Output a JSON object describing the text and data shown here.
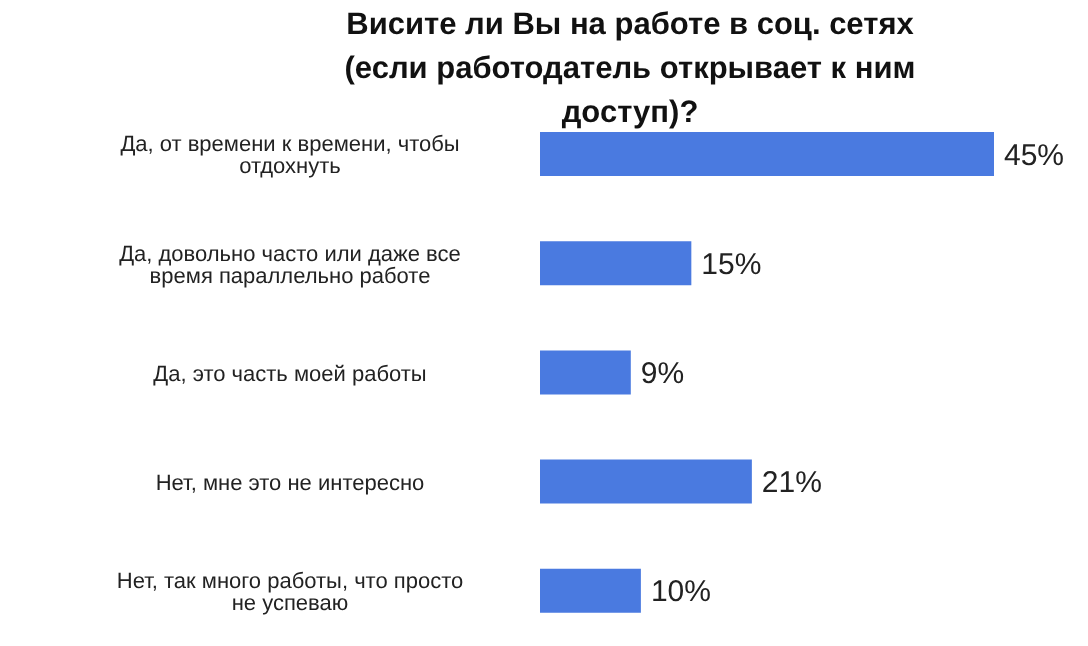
{
  "chart_data": {
    "type": "bar",
    "orientation": "horizontal",
    "title": "Висите ли Вы на работе в соц. сетях (если работодатель открывает к ним доступ)?",
    "categories": [
      "Да, от времени к времени, чтобы отдохнуть",
      "Да, довольно часто или даже все время параллельно работе",
      "Да, это часть моей работы",
      "Нет, мне это не интересно",
      "Нет, так много работы, что просто не успеваю"
    ],
    "values": [
      45,
      15,
      9,
      21,
      10
    ],
    "value_labels": [
      "45%",
      "15%",
      "9%",
      "21%",
      "10%"
    ],
    "color": "#4a7ae0"
  }
}
